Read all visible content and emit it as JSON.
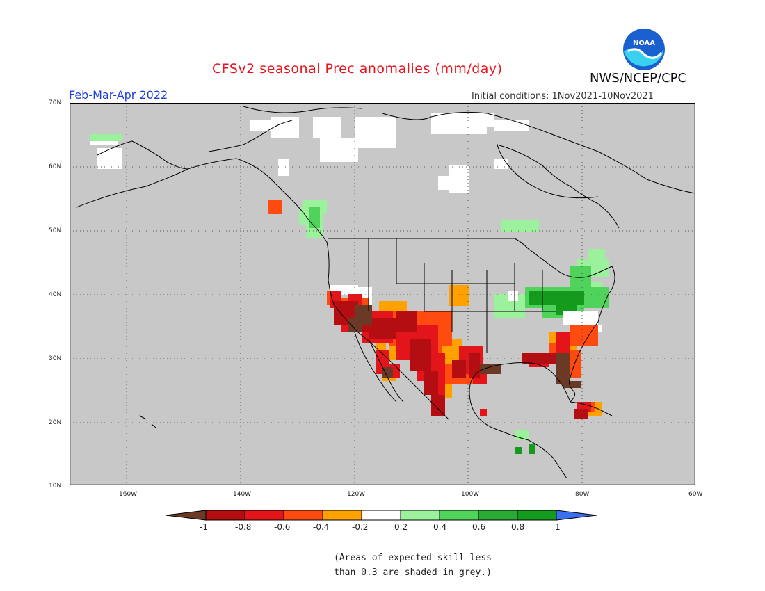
{
  "header": {
    "title": "CFSv2 seasonal Prec anomalies (mm/day)",
    "period": "Feb-Mar-Apr 2022",
    "initial_conditions": "Initial conditions: 1Nov2021-10Nov2021",
    "agency": "NWS/NCEP/CPC",
    "logo_text": "NOAA"
  },
  "map": {
    "lat_labels": [
      "70N",
      "60N",
      "50N",
      "40N",
      "30N",
      "20N",
      "10N"
    ],
    "lon_labels": [
      "160W",
      "140W",
      "120W",
      "100W",
      "80W",
      "60W"
    ],
    "extent": {
      "lon_min": -170,
      "lon_max": -60,
      "lat_min": 10,
      "lat_max": 70
    },
    "grid": true,
    "colors": {
      "land_mask": "#c8c8c8",
      "coastline": "#000000",
      "gridline": "#555555"
    }
  },
  "legend": {
    "ticks": [
      "-1",
      "-0.8",
      "-0.6",
      "-0.4",
      "-0.2",
      "0.2",
      "0.4",
      "0.6",
      "0.8",
      "1"
    ],
    "colors": [
      "#6b3a26",
      "#b40d12",
      "#e3141a",
      "#ff4a10",
      "#ffa200",
      "#ffffff",
      "#9cf19c",
      "#4fd35a",
      "#2aab35",
      "#149a1c",
      "#3a6ff0"
    ]
  },
  "footnote": {
    "line1": "(Areas of expected skill less",
    "line2": "than 0.3 are shaded in grey.)"
  }
}
